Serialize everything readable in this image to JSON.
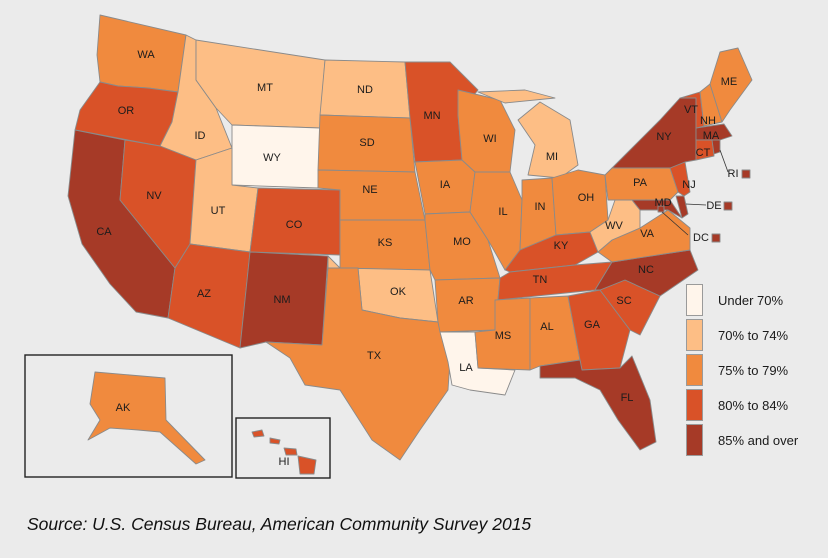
{
  "source": "Source: U.S. Census Bureau, American Community Survey 2015",
  "colors": {
    "under70": "#fff5eb",
    "70to74": "#fdbe85",
    "75to79": "#f08a3e",
    "80to84": "#d95228",
    "85plus": "#a63a27",
    "background": "#ebebeb",
    "border": "#8a8a8a"
  },
  "legend": [
    {
      "key": "under70",
      "label": "Under 70%"
    },
    {
      "key": "70to74",
      "label": "70% to 74%"
    },
    {
      "key": "75to79",
      "label": "75% to 79%"
    },
    {
      "key": "80to84",
      "label": "80% to 84%"
    },
    {
      "key": "85plus",
      "label": "85% and over"
    }
  ],
  "states": {
    "WA": {
      "label": "WA",
      "bin": "75to79"
    },
    "OR": {
      "label": "OR",
      "bin": "80to84"
    },
    "CA": {
      "label": "CA",
      "bin": "85plus"
    },
    "ID": {
      "label": "ID",
      "bin": "70to74"
    },
    "NV": {
      "label": "NV",
      "bin": "80to84"
    },
    "MT": {
      "label": "MT",
      "bin": "70to74"
    },
    "WY": {
      "label": "WY",
      "bin": "under70"
    },
    "UT": {
      "label": "UT",
      "bin": "70to74"
    },
    "AZ": {
      "label": "AZ",
      "bin": "80to84"
    },
    "CO": {
      "label": "CO",
      "bin": "80to84"
    },
    "NM": {
      "label": "NM",
      "bin": "85plus"
    },
    "ND": {
      "label": "ND",
      "bin": "70to74"
    },
    "SD": {
      "label": "SD",
      "bin": "75to79"
    },
    "NE": {
      "label": "NE",
      "bin": "75to79"
    },
    "KS": {
      "label": "KS",
      "bin": "75to79"
    },
    "OK": {
      "label": "OK",
      "bin": "70to74"
    },
    "TX": {
      "label": "TX",
      "bin": "75to79"
    },
    "MN": {
      "label": "MN",
      "bin": "80to84"
    },
    "IA": {
      "label": "IA",
      "bin": "75to79"
    },
    "MO": {
      "label": "MO",
      "bin": "75to79"
    },
    "AR": {
      "label": "AR",
      "bin": "75to79"
    },
    "LA": {
      "label": "LA",
      "bin": "under70"
    },
    "WI": {
      "label": "WI",
      "bin": "75to79"
    },
    "IL": {
      "label": "IL",
      "bin": "75to79"
    },
    "MI": {
      "label": "MI",
      "bin": "70to74"
    },
    "IN": {
      "label": "IN",
      "bin": "75to79"
    },
    "OH": {
      "label": "OH",
      "bin": "75to79"
    },
    "KY": {
      "label": "KY",
      "bin": "80to84"
    },
    "TN": {
      "label": "TN",
      "bin": "80to84"
    },
    "MS": {
      "label": "MS",
      "bin": "75to79"
    },
    "AL": {
      "label": "AL",
      "bin": "75to79"
    },
    "GA": {
      "label": "GA",
      "bin": "80to84"
    },
    "FL": {
      "label": "FL",
      "bin": "85plus"
    },
    "SC": {
      "label": "SC",
      "bin": "80to84"
    },
    "NC": {
      "label": "NC",
      "bin": "85plus"
    },
    "VA": {
      "label": "VA",
      "bin": "75to79"
    },
    "WV": {
      "label": "WV",
      "bin": "70to74"
    },
    "PA": {
      "label": "PA",
      "bin": "75to79"
    },
    "NY": {
      "label": "NY",
      "bin": "85plus"
    },
    "NJ": {
      "label": "NJ",
      "bin": "80to84"
    },
    "MD": {
      "label": "MD",
      "bin": "85plus"
    },
    "DE": {
      "label": "DE",
      "bin": "85plus"
    },
    "DC": {
      "label": "DC",
      "bin": "85plus"
    },
    "CT": {
      "label": "CT",
      "bin": "80to84"
    },
    "RI": {
      "label": "RI",
      "bin": "85plus"
    },
    "MA": {
      "label": "MA",
      "bin": "85plus"
    },
    "VT": {
      "label": "VT",
      "bin": "80to84"
    },
    "NH": {
      "label": "NH",
      "bin": "75to79"
    },
    "ME": {
      "label": "ME",
      "bin": "75to79"
    },
    "AK": {
      "label": "AK",
      "bin": "75to79"
    },
    "HI": {
      "label": "HI",
      "bin": "80to84"
    }
  }
}
